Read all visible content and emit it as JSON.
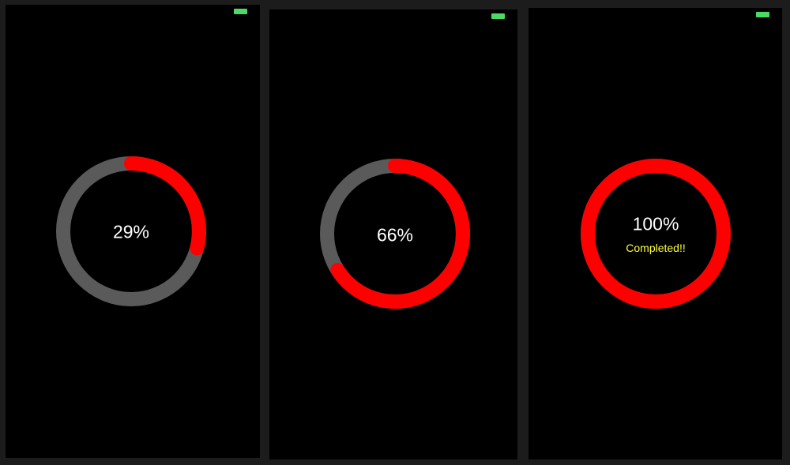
{
  "colors": {
    "track": "#5a5a5a",
    "progress": "#ff0000",
    "label": "#ffffff",
    "status": "#ffff33",
    "battery": "#4cd964"
  },
  "screens": [
    {
      "progress": 0.29,
      "percent_label": "29%",
      "status_label": ""
    },
    {
      "progress": 0.66,
      "percent_label": "66%",
      "status_label": ""
    },
    {
      "progress": 1.0,
      "percent_label": "100%",
      "status_label": "Completed!!"
    }
  ]
}
